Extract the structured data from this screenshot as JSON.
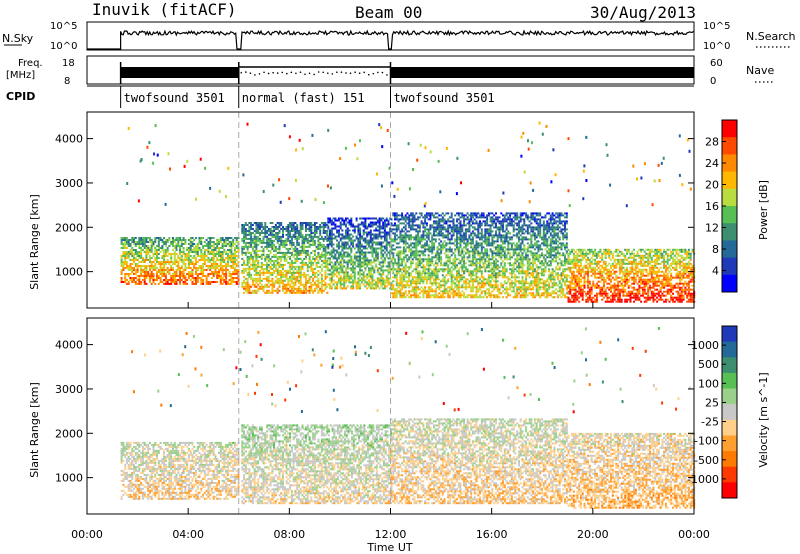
{
  "header": {
    "station": "Inuvik (fitACF)",
    "beam": "Beam 00",
    "date": "30/Aug/2013"
  },
  "top_panel": {
    "nsky_label": "N.Sky",
    "nsky_ticks": [
      "10^5",
      "10^0"
    ],
    "nsearch_label": "N.Search",
    "nsearch_ticks": [
      "10^5",
      "10^0"
    ],
    "freq_label": "Freq.",
    "freq_unit": "[MHz]",
    "freq_ticks": [
      "18",
      "8"
    ],
    "nave_label": "Nave",
    "nave_ticks": [
      "60",
      "0"
    ],
    "cpid_label": "CPID",
    "cpid_segments": [
      {
        "name": "twofsound 3501",
        "start_hour": 1.33,
        "end_hour": 6.0
      },
      {
        "name": "normal (fast) 151",
        "start_hour": 6.0,
        "end_hour": 12.0
      },
      {
        "name": "twofsound 3501",
        "start_hour": 12.0,
        "end_hour": 24.0
      }
    ]
  },
  "x_axis": {
    "label": "Time UT",
    "ticks": [
      "00:00",
      "04:00",
      "08:00",
      "12:00",
      "16:00",
      "20:00",
      "00:00"
    ],
    "range_hours": [
      0,
      24
    ]
  },
  "panels": [
    {
      "ylabel": "Slant Range [km]",
      "yticks": [
        "1000",
        "2000",
        "3000",
        "4000"
      ],
      "colorbar_label": "Power [dB]",
      "colorbar_ticks": [
        "28",
        "24",
        "20",
        "16",
        "12",
        "8",
        "4"
      ],
      "colors": [
        "#ff0000",
        "#ff4a00",
        "#ff8a00",
        "#ffb800",
        "#b9dd40",
        "#58bf54",
        "#3c8f6e",
        "#246a98",
        "#1f3ab8",
        "#0000ff"
      ]
    },
    {
      "ylabel": "Slant Range [km]",
      "yticks": [
        "1000",
        "2000",
        "3000",
        "4000"
      ],
      "colorbar_label": "Velocity [m s^-1]",
      "colorbar_ticks": [
        "1000",
        "500",
        "100",
        "25",
        "-25",
        "-100",
        "-500",
        "-1000"
      ],
      "colors": [
        "#1f3ab8",
        "#246a98",
        "#3c8f6e",
        "#58bf54",
        "#9ad08a",
        "#c8c8c8",
        "#ffd08a",
        "#ffa030",
        "#ff7a00",
        "#ff3a00",
        "#ff0000"
      ]
    }
  ],
  "chart_data": [
    {
      "type": "heatmap",
      "title": "Power",
      "xlabel": "Time UT",
      "ylabel": "Slant Range [km]",
      "xlim_hours": [
        0,
        24
      ],
      "ylim_km": [
        180,
        4600
      ],
      "zlabel": "Power [dB]",
      "zlim": [
        0,
        30
      ],
      "scatter_bands": [
        {
          "t_start": 1.33,
          "t_end": 6.0,
          "r_low": 700,
          "r_high": 1750,
          "value_center": 18
        },
        {
          "t_start": 6.1,
          "t_end": 9.5,
          "r_low": 500,
          "r_high": 2100,
          "value_center": 14
        },
        {
          "t_start": 9.5,
          "t_end": 12.0,
          "r_low": 600,
          "r_high": 2200,
          "value_center": 10
        },
        {
          "t_start": 12.0,
          "t_end": 19.0,
          "r_low": 400,
          "r_high": 2300,
          "value_center": 12
        },
        {
          "t_start": 19.0,
          "t_end": 24.0,
          "r_low": 300,
          "r_high": 1500,
          "value_center": 22
        }
      ]
    },
    {
      "type": "heatmap",
      "title": "Velocity",
      "xlabel": "Time UT",
      "ylabel": "Slant Range [km]",
      "xlim_hours": [
        0,
        24
      ],
      "ylim_km": [
        180,
        4600
      ],
      "zlabel": "Velocity [m s^-1]",
      "zlim": [
        -1000,
        1000
      ],
      "scatter_bands": [
        {
          "t_start": 1.33,
          "t_end": 6.0,
          "r_low": 500,
          "r_high": 1800,
          "value_center": -80
        },
        {
          "t_start": 6.1,
          "t_end": 12.0,
          "r_low": 400,
          "r_high": 2200,
          "value_center": 20
        },
        {
          "t_start": 12.0,
          "t_end": 19.0,
          "r_low": 400,
          "r_high": 2300,
          "value_center": -100
        },
        {
          "t_start": 19.0,
          "t_end": 24.0,
          "r_low": 300,
          "r_high": 2000,
          "value_center": -200
        }
      ]
    }
  ]
}
